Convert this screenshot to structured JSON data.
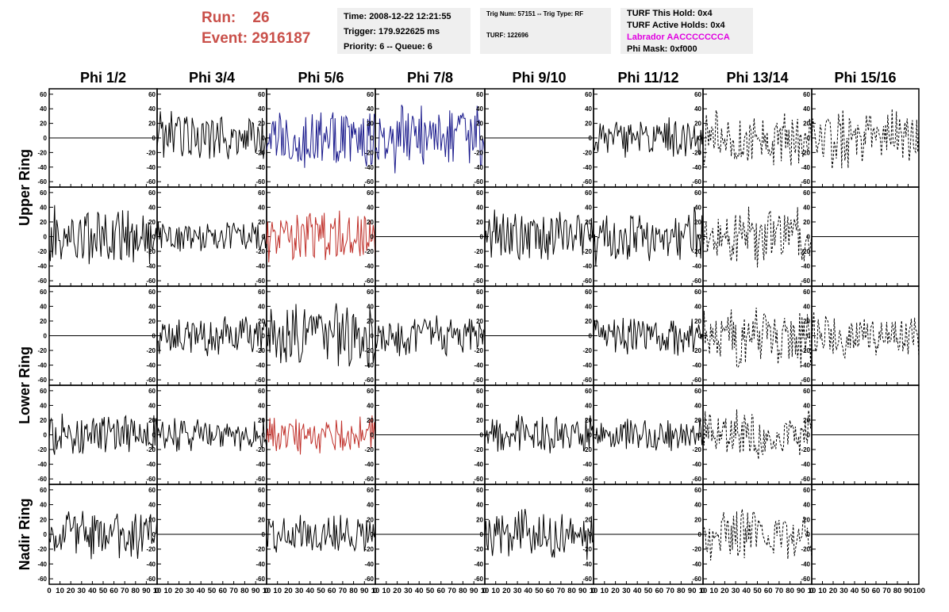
{
  "header": {
    "run_label": "Run:",
    "run_value": "26",
    "event_label": "Event:",
    "event_value": "2916187",
    "time": "Time: 2008-12-22 12:21:55",
    "trigger": "Trigger: 179.922625 ms",
    "priority": "Priority: 6 -- Queue: 6",
    "trig_num": "Trig Num: 57151 -- Trig Type: RF",
    "turf": "TURF: 122696",
    "turf_this_hold": "TURF This Hold: 0x4",
    "turf_active_holds": "TURF Active Holds: 0x4",
    "labrador": "Labrador AACCCCCCCA",
    "phi_mask": "Phi Mask: 0xf000",
    "colors": {
      "run": "#c9504a",
      "labrador": "#e000e0",
      "box": "#efefef"
    }
  },
  "chart_data": {
    "type": "line",
    "columns": [
      "Phi 1/2",
      "Phi 3/4",
      "Phi 5/6",
      "Phi 7/8",
      "Phi 9/10",
      "Phi 11/12",
      "Phi 13/14",
      "Phi 15/16"
    ],
    "ring_labels": [
      {
        "text": "Upper Ring",
        "rows": [
          0,
          1
        ]
      },
      {
        "text": "Lower Ring",
        "rows": [
          2,
          3
        ]
      },
      {
        "text": "Nadir Ring",
        "rows": [
          4
        ]
      }
    ],
    "ylim": [
      -62,
      62
    ],
    "xlim": [
      0,
      100
    ],
    "y_ticks": [
      60,
      40,
      20,
      0,
      -20,
      -40,
      -60
    ],
    "y_tick_labels": [
      "60",
      "40",
      "20",
      "0",
      "-20",
      "-40",
      "-60"
    ],
    "x_ticks": [
      0,
      10,
      20,
      30,
      40,
      50,
      60,
      70,
      80,
      90,
      100
    ],
    "x_tick_labels": [
      [
        "0",
        "10",
        "20",
        "30",
        "40",
        "50",
        "60",
        "70",
        "80",
        "90",
        "10"
      ],
      [
        "0",
        "10",
        "20",
        "30",
        "40",
        "50",
        "60",
        "70",
        "80",
        "90",
        "10"
      ],
      [
        "0",
        "10",
        "20",
        "30",
        "40",
        "50",
        "60",
        "70",
        "80",
        "90",
        "10"
      ],
      [
        "0",
        "10",
        "20",
        "30",
        "40",
        "50",
        "60",
        "70",
        "80",
        "90",
        "10"
      ],
      [
        "0",
        "10",
        "20",
        "30",
        "40",
        "50",
        "60",
        "70",
        "80",
        "90",
        "10"
      ],
      [
        "0",
        "10",
        "20",
        "30",
        "40",
        "50",
        "60",
        "70",
        "80",
        "90",
        "10"
      ],
      [
        "0",
        "10",
        "20",
        "30",
        "40",
        "50",
        "60",
        "70",
        "80",
        "90",
        "10"
      ],
      [
        "0",
        "10",
        "20",
        "30",
        "40",
        "50",
        "60",
        "70",
        "80",
        "90",
        "100"
      ]
    ],
    "styles": {
      "flat": {
        "color": "#000000",
        "dash": false,
        "amp": 0
      },
      "black": {
        "color": "#000000",
        "dash": false,
        "amp": 1
      },
      "blue": {
        "color": "#1a1a8c",
        "dash": false,
        "amp": 1
      },
      "red": {
        "color": "#c0302a",
        "dash": false,
        "amp": 1
      },
      "dashed": {
        "color": "#000000",
        "dash": true,
        "amp": 1
      }
    },
    "grid": [
      [
        "flat",
        "black",
        "blue",
        "blue",
        "flat",
        "black",
        "dashed",
        "dashed"
      ],
      [
        "black",
        "black",
        "red",
        "flat",
        "black",
        "black",
        "dashed",
        "flat"
      ],
      [
        "flat",
        "black",
        "black",
        "black",
        "flat",
        "black",
        "dashed",
        "dashed"
      ],
      [
        "black",
        "black",
        "red",
        "flat",
        "black",
        "black",
        "dashed",
        "flat"
      ],
      [
        "black",
        "flat",
        "black",
        "flat",
        "black",
        "flat",
        "dashed",
        "flat"
      ]
    ],
    "amplitudes": [
      [
        0,
        40,
        48,
        50,
        0,
        30,
        42,
        46
      ],
      [
        45,
        24,
        40,
        0,
        40,
        42,
        45,
        0
      ],
      [
        0,
        30,
        45,
        30,
        0,
        30,
        48,
        34
      ],
      [
        30,
        25,
        30,
        0,
        30,
        24,
        38,
        0
      ],
      [
        36,
        0,
        30,
        0,
        36,
        0,
        36,
        0
      ]
    ],
    "samples_per_trace": 100
  }
}
